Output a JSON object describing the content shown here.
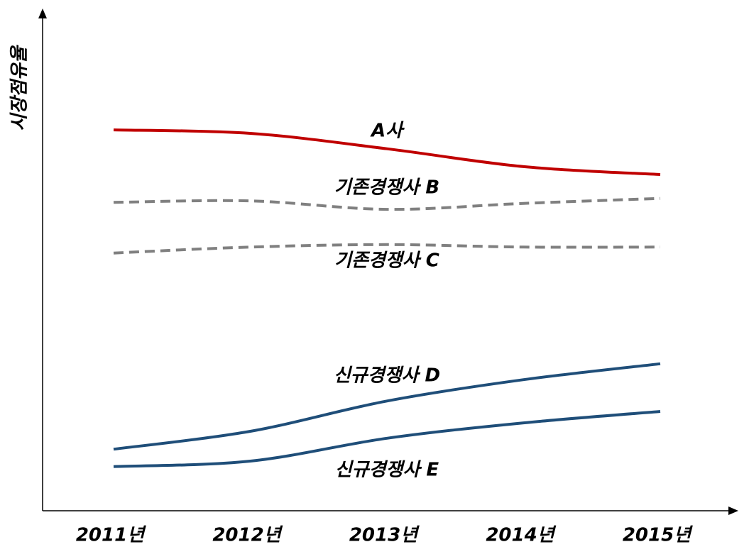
{
  "chart_data": {
    "type": "line",
    "y_label": "시장점유율",
    "categories": [
      "2011년",
      "2012년",
      "2013년",
      "2014년",
      "2015년"
    ],
    "ylim": [
      0,
      100
    ],
    "series": [
      {
        "name": "A사",
        "color": "#c00000",
        "style": "solid",
        "values": [
          76.7,
          76,
          72.9,
          69.3,
          67.7
        ]
      },
      {
        "name": "기존경쟁사 B",
        "color": "#808080",
        "style": "dashed",
        "values": [
          62.1,
          62.4,
          60.7,
          61.9,
          62.9
        ]
      },
      {
        "name": "기존경쟁사 C",
        "color": "#808080",
        "style": "dashed",
        "values": [
          51.9,
          53.1,
          53.6,
          53.1,
          53.1
        ]
      },
      {
        "name": "신규경쟁사 D",
        "color": "#1f4e79",
        "style": "solid",
        "values": [
          12.4,
          16,
          22.1,
          26.4,
          29.6
        ]
      },
      {
        "name": "신규경쟁사 E",
        "color": "#1f4e79",
        "style": "solid",
        "values": [
          8.9,
          10,
          14.6,
          17.7,
          20
        ]
      }
    ]
  }
}
